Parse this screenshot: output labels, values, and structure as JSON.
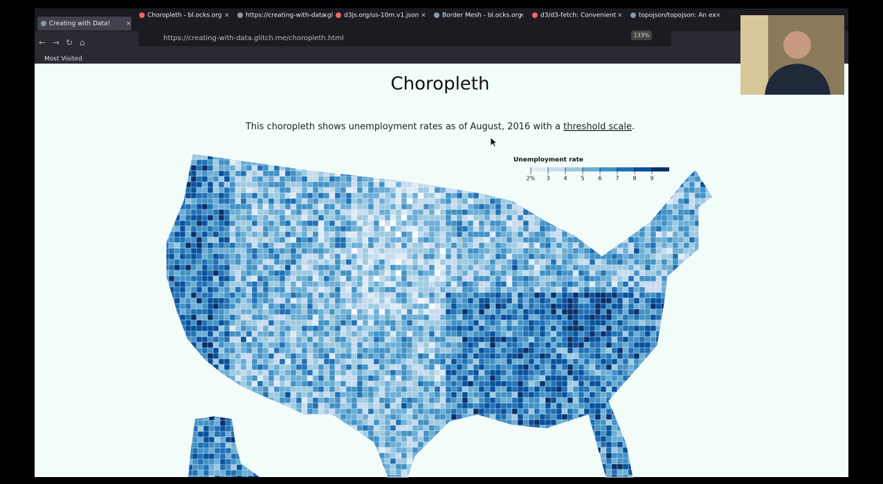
{
  "browser": {
    "tabs": [
      "Creating with Data!",
      "Choropleth - bl.ocks.org",
      "https://creating-with-data.gl",
      "d3js.org/us-10m.v1.json",
      "Border Mesh - bl.ocks.org",
      "d3/d3-fetch: Convenient",
      "topojson/topojson: An ex"
    ],
    "url": "https://creating-with-data.glitch.me/choropleth.html",
    "zoom": "133%",
    "bookmarks": [
      "Most Visited"
    ]
  },
  "page": {
    "title": "Choropleth",
    "description": {
      "text": "This choropleth shows unemployment rates as of August, 2016 with a",
      "link": "threshold scale",
      "end": "."
    },
    "legend": {
      "title": "Unemployment rate",
      "ticks": [
        "2%",
        "3",
        "4",
        "5",
        "6",
        "7",
        "8",
        "9"
      ]
    }
  }
}
